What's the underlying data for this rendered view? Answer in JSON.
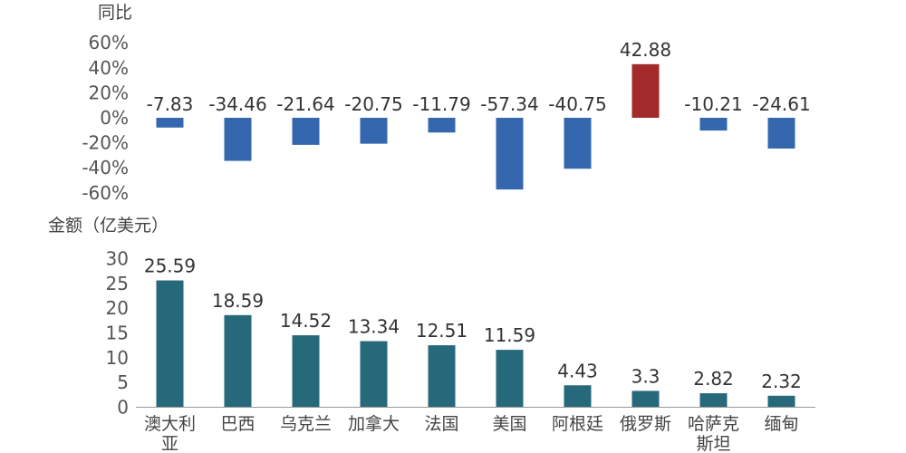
{
  "chart_data": [
    {
      "type": "bar",
      "ylabel": "同比",
      "categories": [
        "澳大利亚",
        "巴西",
        "乌克兰",
        "加拿大",
        "法国",
        "美国",
        "阿根廷",
        "俄罗斯",
        "哈萨克斯坦",
        "缅甸"
      ],
      "values": [
        -7.83,
        -34.46,
        -21.64,
        -20.75,
        -11.79,
        -57.34,
        -40.75,
        42.88,
        -10.21,
        -24.61
      ],
      "value_labels": [
        "-7.83",
        "-34.46",
        "-21.64",
        "-20.75",
        "-11.79",
        "-57.34",
        "-40.75",
        "42.88",
        "-10.21",
        "-24.61"
      ],
      "yticks": [
        "60%",
        "40%",
        "20%",
        "0%",
        "-20%",
        "-40%",
        "-60%"
      ],
      "ylim": [
        -60,
        60
      ],
      "grid": false,
      "colors": {
        "negative": "#3467AE",
        "positive": "#A32A2A"
      }
    },
    {
      "type": "bar",
      "ylabel": "金额（亿美元）",
      "categories": [
        "澳大利亚",
        "巴西",
        "乌克兰",
        "加拿大",
        "法国",
        "美国",
        "阿根廷",
        "俄罗斯",
        "哈萨克斯坦",
        "缅甸"
      ],
      "category_lines": [
        [
          "澳大利",
          "亚"
        ],
        [
          "巴西"
        ],
        [
          "乌克兰"
        ],
        [
          "加拿大"
        ],
        [
          "法国"
        ],
        [
          "美国"
        ],
        [
          "阿根廷"
        ],
        [
          "俄罗斯"
        ],
        [
          "哈萨克",
          "斯坦"
        ],
        [
          "缅甸"
        ]
      ],
      "values": [
        25.59,
        18.59,
        14.52,
        13.34,
        12.51,
        11.59,
        4.43,
        3.3,
        2.82,
        2.32
      ],
      "value_labels": [
        "25.59",
        "18.59",
        "14.52",
        "13.34",
        "12.51",
        "11.59",
        "4.43",
        "3.3",
        "2.82",
        "2.32"
      ],
      "yticks": [
        "30",
        "25",
        "20",
        "15",
        "10",
        "5",
        "0"
      ],
      "ylim": [
        0,
        30
      ],
      "grid": false,
      "colors": {
        "bar": "#26697A",
        "axis": "#999999"
      }
    }
  ]
}
